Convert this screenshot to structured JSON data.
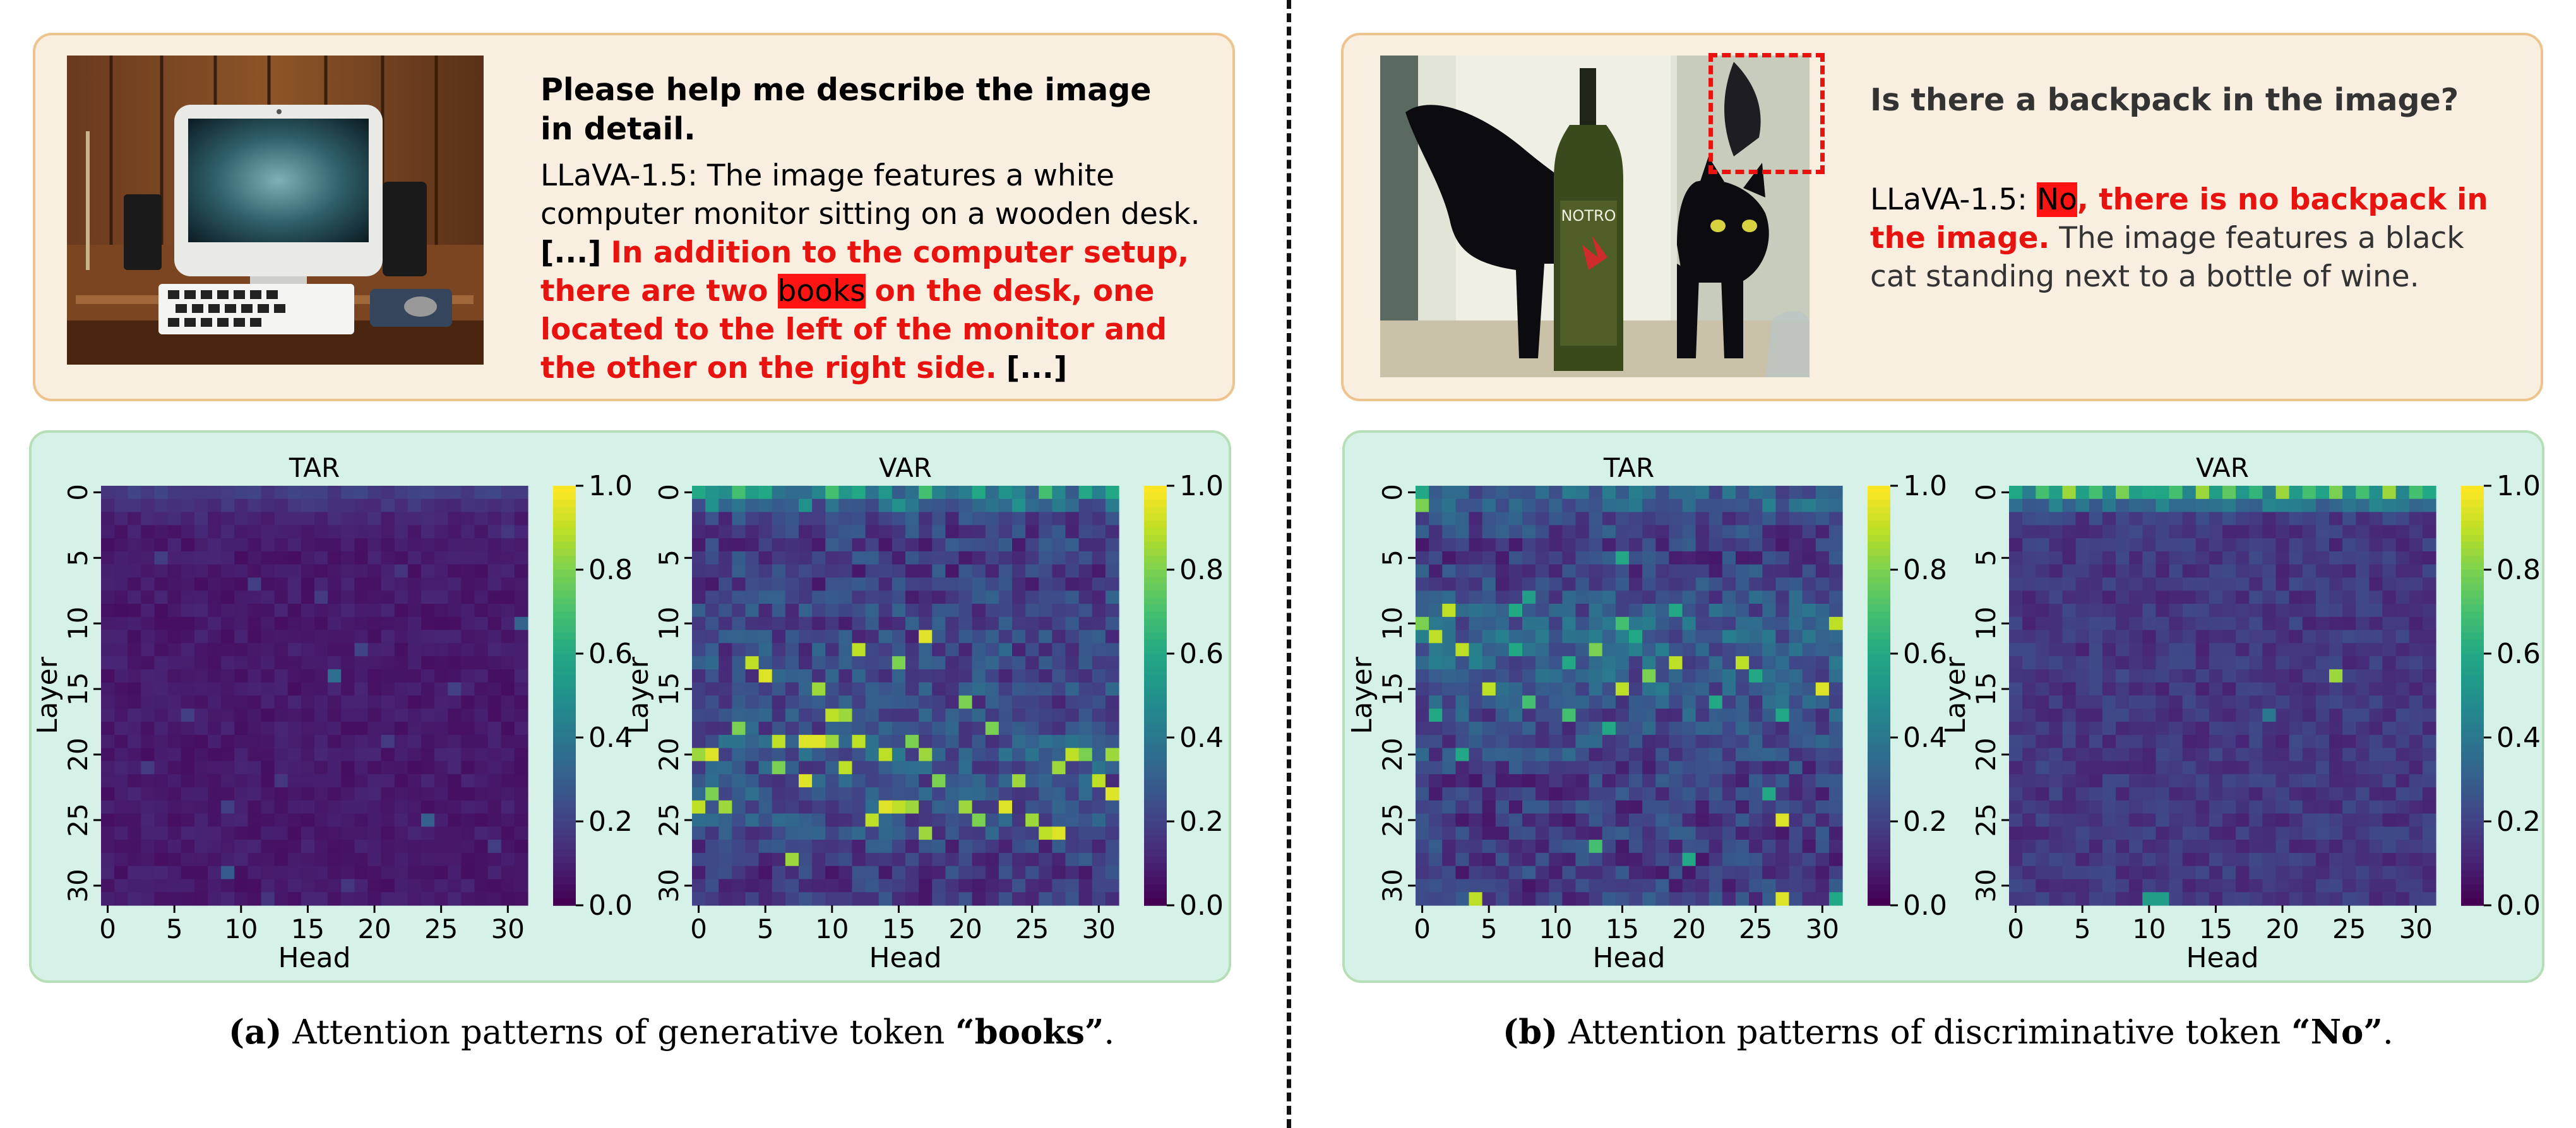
{
  "panel_a": {
    "question": "Please help me describe the image in detail.",
    "answer_intro": "LLaVA-1.5: The image features a white computer monitor sitting on a wooden desk.",
    "ellipsis_start": "[...]",
    "hallucination_pre": "In addition to the computer setup, there are two",
    "hallucinated_token": "books",
    "hallucination_post": "on the desk, one located to the left of the monitor and the other on the right side.",
    "ellipsis_end": "[...]",
    "caption_label": "(a)",
    "caption_text": "Attention patterns of generative token",
    "caption_token": "“books”",
    "caption_period": "."
  },
  "panel_b": {
    "question": "Is there a backpack in the image?",
    "model_prefix": "LLaVA-1.5:",
    "hallucinated_token": "No",
    "hallucination_post": ", there is no backpack in the image.",
    "answer_rest": "The image features a black cat standing next to a bottle of wine.",
    "bottle_label": "NOTRO",
    "caption_label": "(b)",
    "caption_text": "Attention patterns of discriminative token",
    "caption_token": "“No”",
    "caption_period": "."
  },
  "heatmap_style": {
    "colormap": "viridis",
    "cmap_colors": [
      "#440154",
      "#482475",
      "#414487",
      "#355f8d",
      "#2a788e",
      "#21918c",
      "#22a884",
      "#44bf70",
      "#7ad151",
      "#bddf26",
      "#fde725"
    ],
    "vmin": 0.0,
    "vmax": 1.0,
    "colorbar_ticks": [
      "0.0",
      "0.2",
      "0.4",
      "0.6",
      "0.8",
      "1.0"
    ],
    "row_ticks": [
      "0",
      "5",
      "10",
      "15",
      "20",
      "25",
      "30"
    ],
    "col_ticks": [
      "0",
      "5",
      "10",
      "15",
      "20",
      "25",
      "30"
    ],
    "xlabel": "Head",
    "ylabel": "Layer"
  },
  "chart_data": [
    {
      "type": "heatmap",
      "title": "TAR",
      "panel": "a",
      "xlabel": "Head",
      "ylabel": "Layer",
      "rows": 32,
      "cols": 32,
      "base": 0.07,
      "noise": 0.05,
      "hot_cells": [
        [
          0,
          0,
          0.15
        ],
        [
          1,
          2,
          0.15
        ],
        [
          1,
          14,
          0.16
        ],
        [
          2,
          7,
          0.14
        ],
        [
          3,
          30,
          0.16
        ],
        [
          5,
          4,
          0.18
        ],
        [
          6,
          22,
          0.15
        ],
        [
          7,
          11,
          0.18
        ],
        [
          8,
          16,
          0.17
        ],
        [
          10,
          31,
          0.32
        ],
        [
          12,
          19,
          0.2
        ],
        [
          14,
          17,
          0.36
        ],
        [
          15,
          26,
          0.19
        ],
        [
          17,
          6,
          0.18
        ],
        [
          19,
          21,
          0.17
        ],
        [
          21,
          3,
          0.17
        ],
        [
          22,
          13,
          0.16
        ],
        [
          24,
          9,
          0.18
        ],
        [
          25,
          24,
          0.3
        ],
        [
          27,
          29,
          0.18
        ],
        [
          29,
          9,
          0.28
        ],
        [
          30,
          18,
          0.16
        ],
        [
          31,
          12,
          0.15
        ]
      ],
      "row_profile": [
        0.18,
        0.14,
        0.1,
        0.08,
        0.07,
        0.07,
        0.07,
        0.07,
        0.07,
        0.07,
        0.07,
        0.07,
        0.07,
        0.07,
        0.07,
        0.07,
        0.07,
        0.07,
        0.07,
        0.07,
        0.07,
        0.07,
        0.07,
        0.07,
        0.07,
        0.07,
        0.07,
        0.07,
        0.07,
        0.07,
        0.07,
        0.07
      ]
    },
    {
      "type": "heatmap",
      "title": "VAR",
      "panel": "a",
      "xlabel": "Head",
      "ylabel": "Layer",
      "rows": 32,
      "cols": 32,
      "base": 0.17,
      "noise": 0.16,
      "hot_cells": [
        [
          0,
          0,
          0.6
        ],
        [
          0,
          3,
          0.7
        ],
        [
          0,
          5,
          0.6
        ],
        [
          0,
          10,
          0.7
        ],
        [
          0,
          12,
          0.6
        ],
        [
          0,
          17,
          0.7
        ],
        [
          0,
          21,
          0.6
        ],
        [
          0,
          26,
          0.7
        ],
        [
          0,
          29,
          0.6
        ],
        [
          0,
          31,
          0.6
        ],
        [
          1,
          1,
          0.5
        ],
        [
          1,
          8,
          0.5
        ],
        [
          1,
          15,
          0.5
        ],
        [
          1,
          24,
          0.5
        ],
        [
          11,
          17,
          0.95
        ],
        [
          12,
          12,
          0.9
        ],
        [
          13,
          4,
          0.9
        ],
        [
          13,
          15,
          0.8
        ],
        [
          14,
          5,
          0.95
        ],
        [
          15,
          9,
          0.85
        ],
        [
          16,
          20,
          0.8
        ],
        [
          17,
          10,
          0.9
        ],
        [
          17,
          11,
          0.85
        ],
        [
          18,
          3,
          0.8
        ],
        [
          18,
          22,
          0.8
        ],
        [
          19,
          6,
          0.9
        ],
        [
          19,
          8,
          0.95
        ],
        [
          19,
          9,
          0.95
        ],
        [
          19,
          10,
          0.85
        ],
        [
          19,
          12,
          0.9
        ],
        [
          19,
          16,
          0.8
        ],
        [
          20,
          0,
          0.85
        ],
        [
          20,
          1,
          0.95
        ],
        [
          20,
          14,
          0.9
        ],
        [
          20,
          17,
          0.85
        ],
        [
          20,
          28,
          0.9
        ],
        [
          20,
          29,
          0.8
        ],
        [
          20,
          31,
          0.85
        ],
        [
          21,
          6,
          0.8
        ],
        [
          21,
          11,
          0.9
        ],
        [
          21,
          27,
          0.85
        ],
        [
          22,
          8,
          0.95
        ],
        [
          22,
          18,
          0.8
        ],
        [
          22,
          24,
          0.85
        ],
        [
          22,
          30,
          0.9
        ],
        [
          23,
          1,
          0.8
        ],
        [
          23,
          31,
          0.95
        ],
        [
          24,
          0,
          0.9
        ],
        [
          24,
          2,
          0.85
        ],
        [
          24,
          14,
          0.95
        ],
        [
          24,
          15,
          0.9
        ],
        [
          24,
          16,
          0.85
        ],
        [
          24,
          20,
          0.85
        ],
        [
          24,
          23,
          0.95
        ],
        [
          25,
          13,
          0.9
        ],
        [
          25,
          21,
          0.8
        ],
        [
          25,
          25,
          0.85
        ],
        [
          26,
          17,
          0.85
        ],
        [
          26,
          26,
          0.9
        ],
        [
          26,
          27,
          0.95
        ],
        [
          28,
          7,
          0.85
        ]
      ],
      "row_profile": [
        0.42,
        0.3,
        0.22,
        0.18,
        0.18,
        0.18,
        0.18,
        0.18,
        0.2,
        0.2,
        0.2,
        0.2,
        0.22,
        0.22,
        0.22,
        0.22,
        0.22,
        0.22,
        0.24,
        0.26,
        0.28,
        0.26,
        0.24,
        0.24,
        0.24,
        0.24,
        0.22,
        0.2,
        0.18,
        0.16,
        0.16,
        0.16
      ]
    },
    {
      "type": "heatmap",
      "title": "TAR",
      "panel": "b",
      "xlabel": "Head",
      "ylabel": "Layer",
      "rows": 32,
      "cols": 32,
      "base": 0.2,
      "noise": 0.16,
      "hot_cells": [
        [
          0,
          0,
          0.6
        ],
        [
          1,
          0,
          0.8
        ],
        [
          5,
          15,
          0.6
        ],
        [
          8,
          8,
          0.55
        ],
        [
          9,
          2,
          0.9
        ],
        [
          9,
          7,
          0.6
        ],
        [
          9,
          19,
          0.6
        ],
        [
          10,
          0,
          0.8
        ],
        [
          10,
          15,
          0.7
        ],
        [
          10,
          31,
          0.9
        ],
        [
          11,
          1,
          0.9
        ],
        [
          11,
          16,
          0.6
        ],
        [
          12,
          3,
          0.9
        ],
        [
          12,
          7,
          0.6
        ],
        [
          12,
          13,
          0.8
        ],
        [
          13,
          11,
          0.6
        ],
        [
          13,
          19,
          0.9
        ],
        [
          13,
          24,
          0.9
        ],
        [
          14,
          17,
          0.8
        ],
        [
          14,
          25,
          0.6
        ],
        [
          15,
          5,
          0.9
        ],
        [
          15,
          15,
          0.9
        ],
        [
          15,
          30,
          0.95
        ],
        [
          16,
          8,
          0.7
        ],
        [
          16,
          22,
          0.6
        ],
        [
          17,
          1,
          0.6
        ],
        [
          17,
          11,
          0.7
        ],
        [
          17,
          27,
          0.6
        ],
        [
          18,
          14,
          0.6
        ],
        [
          20,
          3,
          0.6
        ],
        [
          23,
          26,
          0.6
        ],
        [
          25,
          27,
          0.95
        ],
        [
          27,
          13,
          0.7
        ],
        [
          28,
          20,
          0.6
        ],
        [
          31,
          4,
          0.9
        ],
        [
          31,
          27,
          0.95
        ],
        [
          31,
          31,
          0.6
        ]
      ],
      "row_profile": [
        0.3,
        0.3,
        0.22,
        0.2,
        0.18,
        0.18,
        0.2,
        0.2,
        0.24,
        0.26,
        0.3,
        0.3,
        0.3,
        0.3,
        0.28,
        0.28,
        0.26,
        0.24,
        0.22,
        0.22,
        0.22,
        0.2,
        0.18,
        0.18,
        0.18,
        0.18,
        0.18,
        0.18,
        0.18,
        0.18,
        0.18,
        0.2
      ]
    },
    {
      "type": "heatmap",
      "title": "VAR",
      "panel": "b",
      "xlabel": "Head",
      "ylabel": "Layer",
      "rows": 32,
      "cols": 32,
      "base": 0.17,
      "noise": 0.09,
      "hot_cells": [
        [
          0,
          0,
          0.6
        ],
        [
          0,
          2,
          0.7
        ],
        [
          0,
          4,
          0.85
        ],
        [
          0,
          6,
          0.7
        ],
        [
          0,
          8,
          0.8
        ],
        [
          0,
          10,
          0.6
        ],
        [
          0,
          12,
          0.7
        ],
        [
          0,
          14,
          0.85
        ],
        [
          0,
          16,
          0.75
        ],
        [
          0,
          18,
          0.65
        ],
        [
          0,
          20,
          0.85
        ],
        [
          0,
          22,
          0.7
        ],
        [
          0,
          24,
          0.8
        ],
        [
          0,
          26,
          0.7
        ],
        [
          0,
          28,
          0.85
        ],
        [
          0,
          30,
          0.7
        ],
        [
          0,
          31,
          0.6
        ],
        [
          1,
          3,
          0.45
        ],
        [
          1,
          11,
          0.45
        ],
        [
          1,
          19,
          0.45
        ],
        [
          1,
          27,
          0.45
        ],
        [
          14,
          24,
          0.85
        ],
        [
          17,
          19,
          0.4
        ],
        [
          31,
          10,
          0.55
        ],
        [
          31,
          11,
          0.55
        ]
      ],
      "row_profile": [
        0.5,
        0.35,
        0.18,
        0.16,
        0.16,
        0.16,
        0.16,
        0.16,
        0.16,
        0.16,
        0.16,
        0.16,
        0.16,
        0.16,
        0.16,
        0.16,
        0.16,
        0.16,
        0.16,
        0.16,
        0.16,
        0.16,
        0.16,
        0.16,
        0.16,
        0.16,
        0.16,
        0.16,
        0.16,
        0.16,
        0.16,
        0.16
      ]
    }
  ]
}
